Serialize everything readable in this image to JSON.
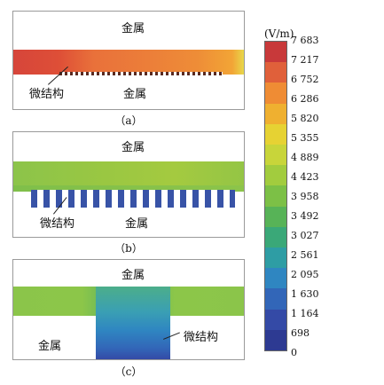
{
  "panels": [
    {
      "id": "a",
      "caption": "（a）",
      "top_label": "金属",
      "bottom_label_left": "微结构",
      "bottom_label_center": "金属"
    },
    {
      "id": "b",
      "caption": "（b）",
      "top_label": "金属",
      "bottom_label_left": "微结构",
      "bottom_label_center": "金属"
    },
    {
      "id": "c",
      "caption": "（c）",
      "top_label": "金属",
      "bottom_label_left": "金属",
      "bottom_label_right": "微结构"
    }
  ],
  "colorbar": {
    "unit": "(V/m)",
    "ticks": [
      "7 683",
      "7 217",
      "6 752",
      "6 286",
      "5 820",
      "5 355",
      "4 889",
      "4 423",
      "3 958",
      "3 492",
      "3 027",
      "2 561",
      "2 095",
      "1 630",
      "1 164",
      "698",
      "0"
    ],
    "colors": [
      "#c8393a",
      "#e0603a",
      "#ef8c34",
      "#efb030",
      "#e6d233",
      "#c8d53a",
      "#a2cc3e",
      "#7cc046",
      "#57b357",
      "#3aa878",
      "#2e9da4",
      "#2f86c1",
      "#3266b8",
      "#344aa6",
      "#2d3a92"
    ]
  }
}
